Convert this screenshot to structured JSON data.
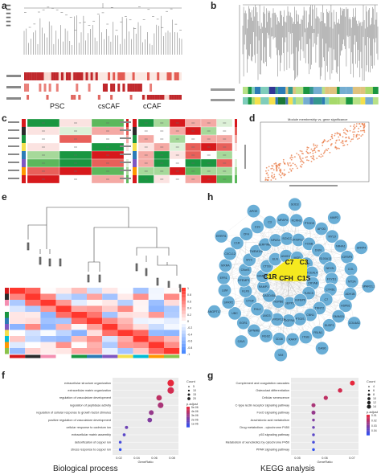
{
  "panels": {
    "a": {
      "label": "a",
      "groups": [
        "PSC",
        "csCAF",
        "cCAF"
      ]
    },
    "b": {
      "label": "b"
    },
    "c": {
      "label": "c"
    },
    "d": {
      "label": "d",
      "title": "Module membership vs. gene significance"
    },
    "e": {
      "label": "e",
      "legend_ticks": [
        "1",
        "0.8",
        "0.6",
        "0.4",
        "0.2",
        "0",
        "-0.2",
        "-0.4",
        "-0.6",
        "-0.8",
        "-1"
      ]
    },
    "h": {
      "label": "h",
      "hub_genes": [
        "C7",
        "C1R",
        "CFH",
        "C1S",
        "C3"
      ],
      "genes": [
        "SEPP1",
        "HSPB6",
        "GADD45A",
        "RAMP1",
        "SAMD4A",
        "CTSS",
        "ELN",
        "ANXD3",
        "MGP",
        "PLTP",
        "TCEAL4",
        "CRYAB",
        "TUSC5",
        "IGFBP6",
        "CTGF",
        "KLF6",
        "EFEMP1",
        "C9orf3",
        "MYC",
        "TMEM119",
        "SERPINE1",
        "NPAS4",
        "SOX17",
        "CRISPLD2",
        "FOSB",
        "DGN",
        "S100A13",
        "NEXN",
        "FXYD1",
        "CYR61",
        "C7",
        "TNNT2",
        "CNN1",
        "PTGIS",
        "PDGFRA",
        "TNFRSF12A",
        "LMO3",
        "FHL2",
        "C1R",
        "CFH",
        "C1S",
        "C3",
        "MFAP4",
        "KCNN3",
        "PTGDS",
        "APOD",
        "MYL9",
        "NR4A1",
        "IGFBP5",
        "COL",
        "MT2A",
        "ADH1B",
        "HSPB1",
        "SMIM15",
        "DUSP1",
        "FBLN1",
        "ITGB",
        "RARP",
        "CD36",
        "RGS2",
        "GPNMB",
        "EGR1",
        "UBC",
        "SFRP2",
        "LUM",
        "EFR1",
        "MXRA",
        "CXCL12",
        "SOD3",
        "MMP2",
        "SFRP4",
        "SPARCL1",
        "COL6A3",
        "GAS6",
        "VIM",
        "CAV1",
        "ANGPTL7",
        "DKK3",
        "ERRFI1",
        "APOE"
      ]
    },
    "f": {
      "label": "f",
      "caption": "Biological process",
      "terms": [
        "extracellular structure organization",
        "extracellular matrix organization",
        "regulation of vasculature development",
        "regulation of peptidase activity",
        "regulation of cellular response to growth factor stimulus",
        "positive regulation of vasculature development",
        "cellular response to cadmium ion",
        "extracellular matrix assembly",
        "detoxification of copper ion",
        "stress response to copper ion"
      ],
      "xlabel": "GeneRatio",
      "xticks": [
        "0.02",
        "0.04",
        "0.06",
        "0.08"
      ],
      "count_title": "Count",
      "count_vals": [
        "5",
        "10",
        "15",
        "20"
      ],
      "padj_title": "p.adjust",
      "padj_vals": [
        "5e-06",
        "4e-06",
        "3e-06",
        "2e-06",
        "1e-06"
      ]
    },
    "g": {
      "label": "g",
      "caption": "KEGG analysis",
      "terms": [
        "Complement and coagulation cascades",
        "Osteoclast differentiation",
        "Cellular senescence",
        "C-type lectin receptor signaling pathway",
        "FoxO signaling pathway",
        "Arachidonic acid metabolism",
        "Drug metabolism - cytochrome P450",
        "p53 signaling pathway",
        "Metabolism of xenobiotics by cytochrome P450",
        "PPAR signaling pathway"
      ],
      "xlabel": "GeneRatio",
      "xticks": [
        "0.05",
        "0.06",
        "0.07"
      ],
      "count_title": "Count",
      "count_vals": [
        "4",
        "6",
        "8",
        "10",
        "12",
        "14"
      ],
      "padj_title": "p.adjust",
      "padj_vals": [
        "0.01",
        "0.02",
        "0.03",
        "0.04"
      ]
    }
  },
  "chart_data": [
    {
      "type": "scatter",
      "panel": "f",
      "categories": [
        "extracellular structure organization",
        "extracellular matrix organization",
        "regulation of vasculature development",
        "regulation of peptidase activity",
        "regulation of cellular response to growth factor stimulus",
        "positive regulation of vasculature development",
        "cellular response to cadmium ion",
        "extracellular matrix assembly",
        "detoxification of copper ion",
        "stress response to copper ion"
      ],
      "x": [
        0.085,
        0.085,
        0.07,
        0.072,
        0.06,
        0.058,
        0.028,
        0.025,
        0.02,
        0.02
      ],
      "size": [
        22,
        22,
        17,
        18,
        14,
        13,
        6,
        5,
        4,
        4
      ],
      "xlabel": "GeneRatio",
      "xlim": [
        0.01,
        0.095
      ]
    },
    {
      "type": "scatter",
      "panel": "g",
      "categories": [
        "Complement and coagulation cascades",
        "Osteoclast differentiation",
        "Cellular senescence",
        "C-type lectin receptor signaling pathway",
        "FoxO signaling pathway",
        "Arachidonic acid metabolism",
        "Drug metabolism - cytochrome P450",
        "p53 signaling pathway",
        "Metabolism of xenobiotics by cytochrome P450",
        "PPAR signaling pathway"
      ],
      "x": [
        0.075,
        0.069,
        0.062,
        0.056,
        0.056,
        0.056,
        0.056,
        0.056,
        0.056,
        0.056
      ],
      "size": [
        14,
        12,
        11,
        10,
        10,
        4,
        4,
        4,
        4,
        4
      ],
      "xlabel": "GeneRatio",
      "xlim": [
        0.045,
        0.078
      ]
    }
  ],
  "colors": {
    "red": "#d7191c",
    "blue": "#2c7bb6",
    "green": "#1a9641",
    "node": "#6aaed6",
    "hub": "#f5e91f"
  }
}
